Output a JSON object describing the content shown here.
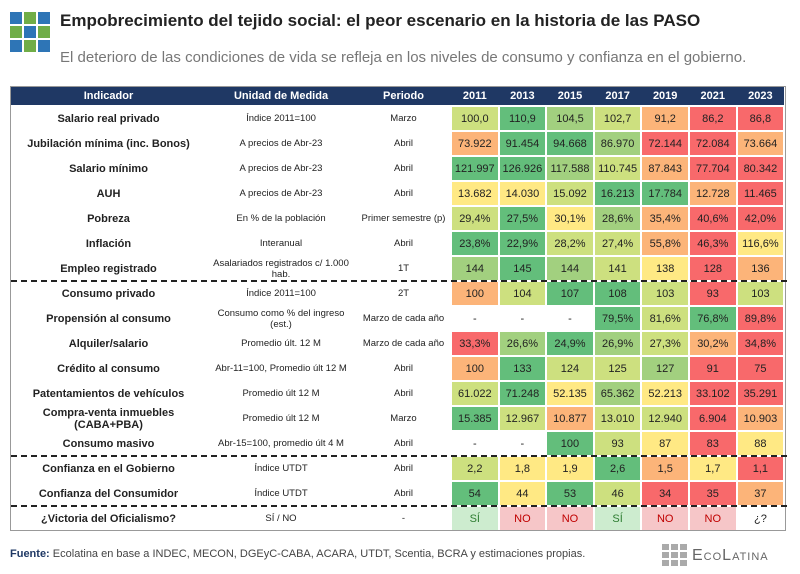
{
  "header": {
    "title": "Empobrecimiento del tejido social: el peor escenario en la historia de las PASO",
    "subtitle": "El deterioro de las condiciones de vida se refleja en los niveles de consumo y confianza en el gobierno."
  },
  "table": {
    "columns": [
      "Indicador",
      "Unidad de Medida",
      "Periodo",
      "2011",
      "2013",
      "2015",
      "2017",
      "2019",
      "2021",
      "2023"
    ],
    "rows": [
      [
        "Salario real privado",
        "Índice 2011=100",
        "Marzo",
        "100,0",
        "110,9",
        "104,5",
        "102,7",
        "91,2",
        "86,2",
        "86,8"
      ],
      [
        "Jubilación mínima (inc. Bonos)",
        "A precios de Abr-23",
        "Abril",
        "73.922",
        "91.454",
        "94.668",
        "86.970",
        "72.144",
        "72.084",
        "73.664"
      ],
      [
        "Salario mínimo",
        "A precios de Abr-23",
        "Abril",
        "121.997",
        "126.926",
        "117.588",
        "110.745",
        "87.843",
        "77.704",
        "80.342"
      ],
      [
        "AUH",
        "A precios de Abr-23",
        "Abril",
        "13.682",
        "14.030",
        "15.092",
        "16.213",
        "17.784",
        "12.728",
        "11.465"
      ],
      [
        "Pobreza",
        "En % de la población",
        "Primer semestre (p)",
        "29,4%",
        "27,5%",
        "30,1%",
        "28,6%",
        "35,4%",
        "40,6%",
        "42,0%"
      ],
      [
        "Inflación",
        "Interanual",
        "Abril",
        "23,8%",
        "22,9%",
        "28,2%",
        "27,4%",
        "55,8%",
        "46,3%",
        "116,6%"
      ],
      [
        "Empleo registrado",
        "Asalariados registrados c/ 1.000 hab.",
        "1T",
        "144",
        "145",
        "144",
        "141",
        "138",
        "128",
        "136"
      ],
      [
        "Consumo privado",
        "Índice 2011=100",
        "2T",
        "100",
        "104",
        "107",
        "108",
        "103",
        "93",
        "103"
      ],
      [
        "Propensión al consumo",
        "Consumo como % del ingreso (est.)",
        "Marzo de cada año",
        "-",
        "-",
        "-",
        "79,5%",
        "81,6%",
        "76,8%",
        "89,8%"
      ],
      [
        "Alquiler/salario",
        "Promedio últ. 12 M",
        "Marzo de cada año",
        "33,3%",
        "26,6%",
        "24,9%",
        "26,9%",
        "27,3%",
        "30,2%",
        "34,8%"
      ],
      [
        "Crédito al consumo",
        "Abr-11=100, Promedio últ 12 M",
        "Abril",
        "100",
        "133",
        "124",
        "125",
        "127",
        "91",
        "75"
      ],
      [
        "Patentamientos de vehículos",
        "Promedio últ 12 M",
        "Abril",
        "61.022",
        "71.248",
        "52.135",
        "65.362",
        "52.213",
        "33.102",
        "35.291"
      ],
      [
        "Compra-venta inmuebles (CABA+PBA)",
        "Promedio últ 12 M",
        "Marzo",
        "15.385",
        "12.967",
        "10.877",
        "13.010",
        "12.940",
        "6.904",
        "10.903"
      ],
      [
        "Consumo masivo",
        "Abr-15=100, promedio últ 4 M",
        "Abril",
        "-",
        "-",
        "100",
        "93",
        "87",
        "83",
        "88"
      ],
      [
        "Confianza en el Gobierno",
        "Índice UTDT",
        "Abril",
        "2,2",
        "1,8",
        "1,9",
        "2,6",
        "1,5",
        "1,7",
        "1,1"
      ],
      [
        "Confianza del Consumidor",
        "Índice UTDT",
        "Abril",
        "54",
        "44",
        "53",
        "46",
        "34",
        "35",
        "37"
      ],
      [
        "¿Victoria del Oficialismo?",
        "SÍ / NO",
        "-",
        "SÍ",
        "NO",
        "NO",
        "SÍ",
        "NO",
        "NO",
        "¿?"
      ]
    ]
  },
  "footer": {
    "source_label": "Fuente:",
    "source": "Ecolatina en base a INDEC, MECON, DGEyC-CABA, ACARA, UTDT, Scentia, BCRA y estimaciones propias.",
    "logo": "EcoLatina"
  }
}
